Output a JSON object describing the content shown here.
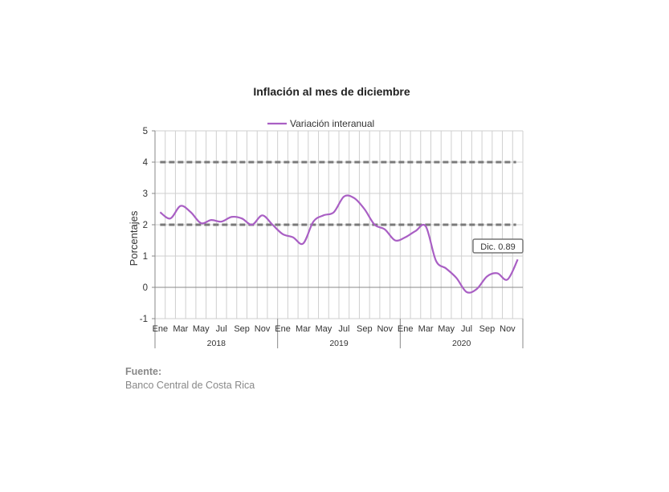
{
  "chart_data": {
    "type": "line",
    "title": "Inflación al mes de diciembre",
    "ylabel": "Porcentajes",
    "xlabel": "",
    "ylim": [
      -1,
      5
    ],
    "yticks": [
      -1,
      0,
      1,
      2,
      3,
      4,
      5
    ],
    "grid": true,
    "legend_position": "top",
    "x_month_labels": [
      "Ene",
      "Mar",
      "May",
      "Jul",
      "Sep",
      "Nov",
      "Ene",
      "Mar",
      "May",
      "Jul",
      "Sep",
      "Nov",
      "Ene",
      "Mar",
      "May",
      "Jul",
      "Sep",
      "Nov"
    ],
    "x_year_labels": [
      "2018",
      "2019",
      "2020"
    ],
    "series": [
      {
        "name": "Variación interanual",
        "color": "#a95fc4",
        "values": [
          2.4,
          2.2,
          2.6,
          2.4,
          2.05,
          2.15,
          2.1,
          2.25,
          2.2,
          2.0,
          2.3,
          2.0,
          1.7,
          1.6,
          1.4,
          2.1,
          2.3,
          2.4,
          2.9,
          2.85,
          2.5,
          2.0,
          1.85,
          1.5,
          1.6,
          1.8,
          1.95,
          0.85,
          0.6,
          0.3,
          -0.15,
          -0.05,
          0.35,
          0.45,
          0.25,
          0.89
        ]
      }
    ],
    "reference_lines": [
      2,
      4
    ],
    "annotation": "Dic. 0.89"
  },
  "source": {
    "label": "Fuente:",
    "text": "Banco Central de Costa Rica"
  }
}
